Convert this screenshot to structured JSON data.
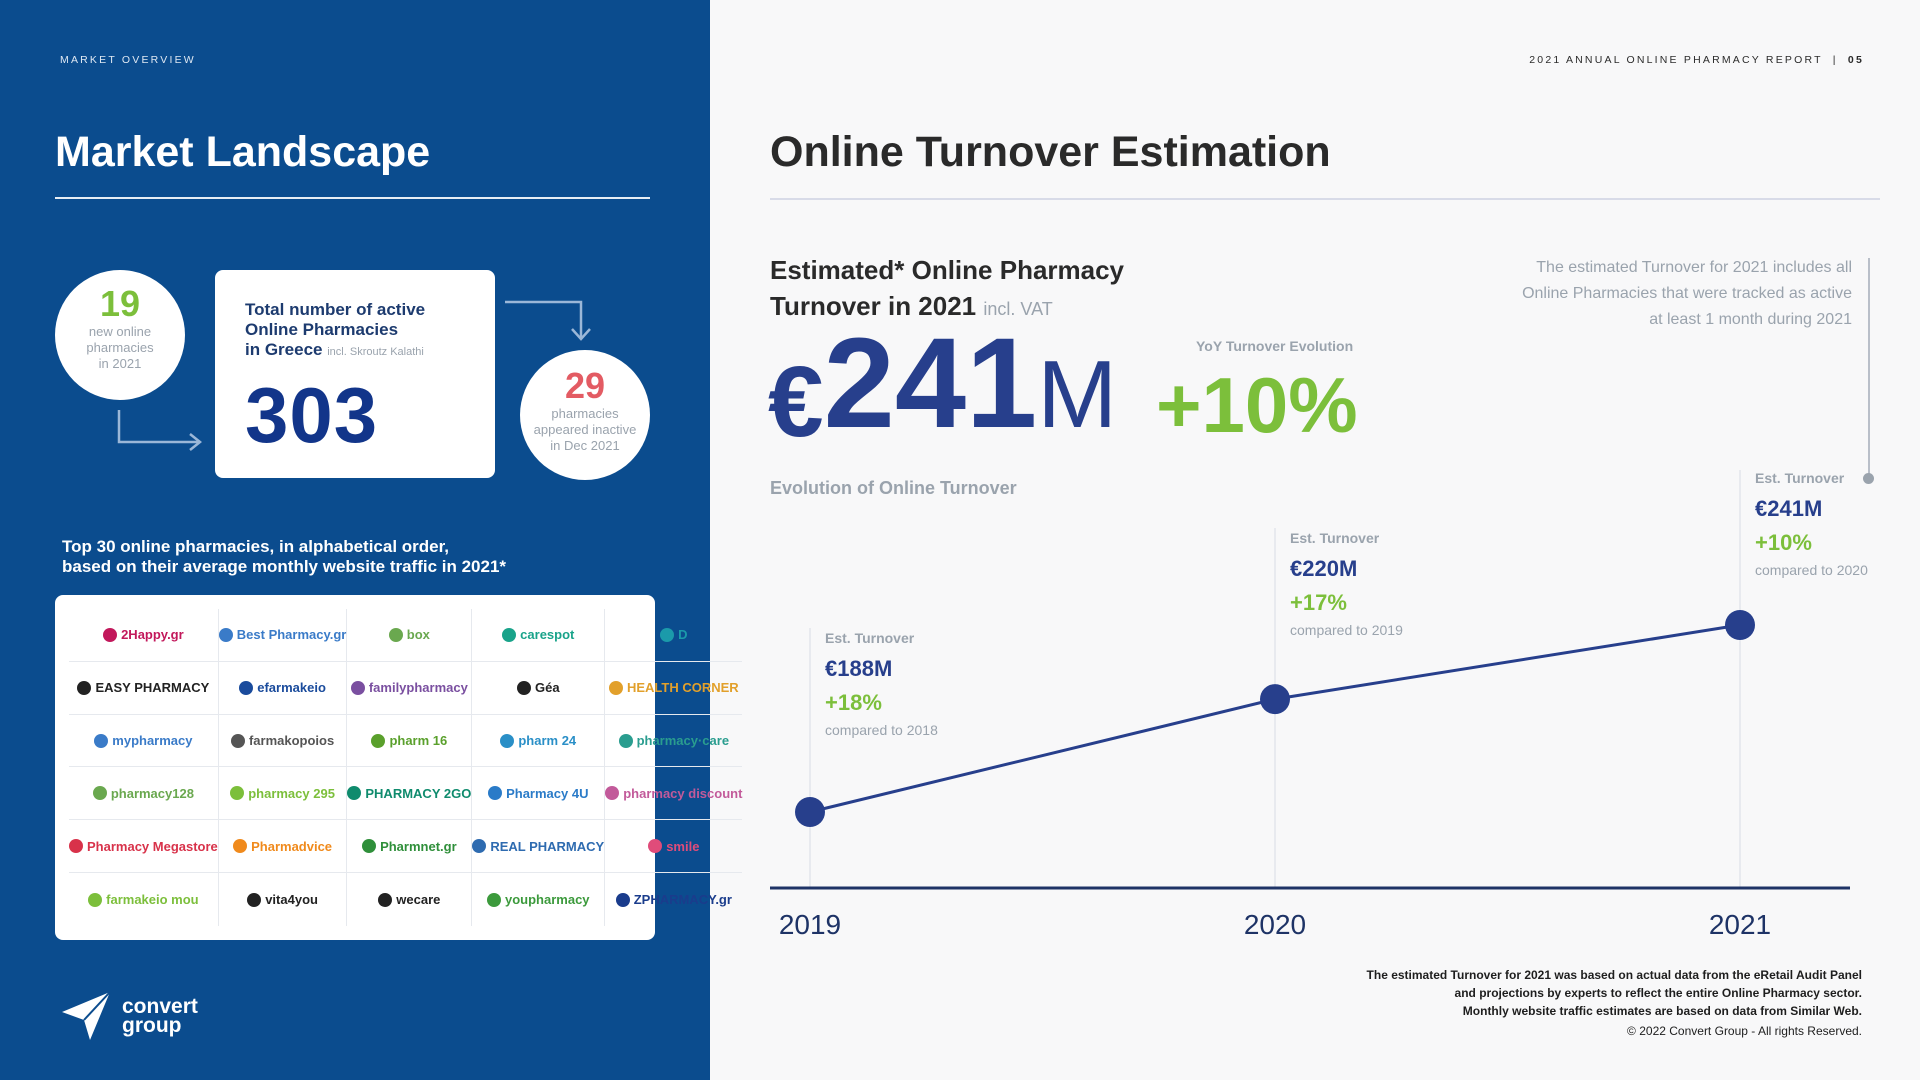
{
  "left": {
    "section_label": "MARKET OVERVIEW",
    "title": "Market Landscape",
    "new_online": {
      "value": "19",
      "caption_1": "new online",
      "caption_2": "pharmacies",
      "caption_3": "in 2021"
    },
    "total": {
      "title_1": "Total number of active",
      "title_2": "Online Pharmacies",
      "title_3": "in Greece",
      "note": "incl. Skroutz Kalathi",
      "value": "303"
    },
    "inactive": {
      "value": "29",
      "caption_1": "pharmacies",
      "caption_2": "appeared inactive",
      "caption_3": "in Dec 2021"
    },
    "top30_line1": "Top 30 online pharmacies, in alphabetical order,",
    "top30_line2": "based on their average monthly website traffic in 2021*",
    "logos": [
      {
        "text": "2Happy.gr",
        "color": "#c2185b"
      },
      {
        "text": "Best Pharmacy.gr",
        "color": "#3a7bc8"
      },
      {
        "text": "box",
        "color": "#6aa84f"
      },
      {
        "text": "carespot",
        "color": "#19a38a"
      },
      {
        "text": "D",
        "color": "#1b9aaa"
      },
      {
        "text": "EASY PHARMACY",
        "color": "#222222"
      },
      {
        "text": "efarmakeio",
        "color": "#1a4b9c"
      },
      {
        "text": "familypharmacy",
        "color": "#7a4fa0"
      },
      {
        "text": "Géa",
        "color": "#222222"
      },
      {
        "text": "HEALTH CORNER",
        "color": "#e2a02b"
      },
      {
        "text": "mypharmacy",
        "color": "#3a7bc8"
      },
      {
        "text": "farmakopoios",
        "color": "#555555"
      },
      {
        "text": "pharm 16",
        "color": "#5aa02c"
      },
      {
        "text": "pharm 24",
        "color": "#2a8fc7"
      },
      {
        "text": "pharmacy·care",
        "color": "#2a9d8f"
      },
      {
        "text": "pharmacy128",
        "color": "#6aa84f"
      },
      {
        "text": "pharmacy 295",
        "color": "#7cbf3b"
      },
      {
        "text": "PHARMACY 2GO",
        "color": "#0f8b6d"
      },
      {
        "text": "Pharmacy 4U",
        "color": "#2a7bc8"
      },
      {
        "text": "pharmacy discount",
        "color": "#c25a9a"
      },
      {
        "text": "Pharmacy Megastore",
        "color": "#d8324a"
      },
      {
        "text": "Pharmadvice",
        "color": "#f08a1c"
      },
      {
        "text": "Pharmnet.gr",
        "color": "#2f8f3a"
      },
      {
        "text": "REAL PHARMACY",
        "color": "#2e6bb0"
      },
      {
        "text": "smile",
        "color": "#e04c7a"
      },
      {
        "text": "farmakeio mou",
        "color": "#7cbf3b"
      },
      {
        "text": "vita4you",
        "color": "#222222"
      },
      {
        "text": "wecare",
        "color": "#222222"
      },
      {
        "text": "youpharmacy",
        "color": "#3c9a3c"
      },
      {
        "text": "ZPHARMACY.gr",
        "color": "#1a3c8c"
      }
    ],
    "brand": {
      "line1": "convert",
      "line2": "group"
    }
  },
  "right": {
    "report_label": "2021 ANNUAL ONLINE PHARMACY REPORT",
    "page_number": "05",
    "title": "Online Turnover Estimation",
    "subhead_line1": "Estimated* Online Pharmacy",
    "subhead_line2": "Turnover in 2021",
    "subhead_vat": "incl. VAT",
    "big_currency": "€",
    "big_number": "241",
    "big_unit": "M",
    "yoy_label": "YoY Turnover Evolution",
    "yoy_value": "+10%",
    "side_note_1": "The estimated Turnover for 2021 includes all",
    "side_note_2": "Online Pharmacies that were tracked as active",
    "side_note_3": "at least 1 month during 2021",
    "evolution_label": "Evolution of Online Turnover",
    "annotations": [
      {
        "label": "Est. Turnover",
        "value": "€188M",
        "pct": "+18%",
        "cmp": "compared to 2018"
      },
      {
        "label": "Est. Turnover",
        "value": "€220M",
        "pct": "+17%",
        "cmp": "compared to 2019"
      },
      {
        "label": "Est. Turnover",
        "value": "€241M",
        "pct": "+10%",
        "cmp": "compared to 2020"
      }
    ],
    "footnote_1": "The estimated Turnover for 2021 was based on actual data from the eRetail Audit Panel",
    "footnote_2": "and projections by experts to reflect the entire Online Pharmacy sector.",
    "footnote_3": "Monthly website traffic estimates are based on data from Similar Web.",
    "copyright": "© 2022 Convert Group - All rights Reserved."
  },
  "chart_data": {
    "type": "line",
    "x": [
      "2019",
      "2020",
      "2021"
    ],
    "series": [
      {
        "values": [
          188,
          220,
          241
        ]
      }
    ],
    "title": "Evolution of Online Turnover",
    "xlabel": "",
    "ylabel": "",
    "ylim": [
      150,
      260
    ],
    "grid": false,
    "legend": "none",
    "color": "#273f8c"
  }
}
